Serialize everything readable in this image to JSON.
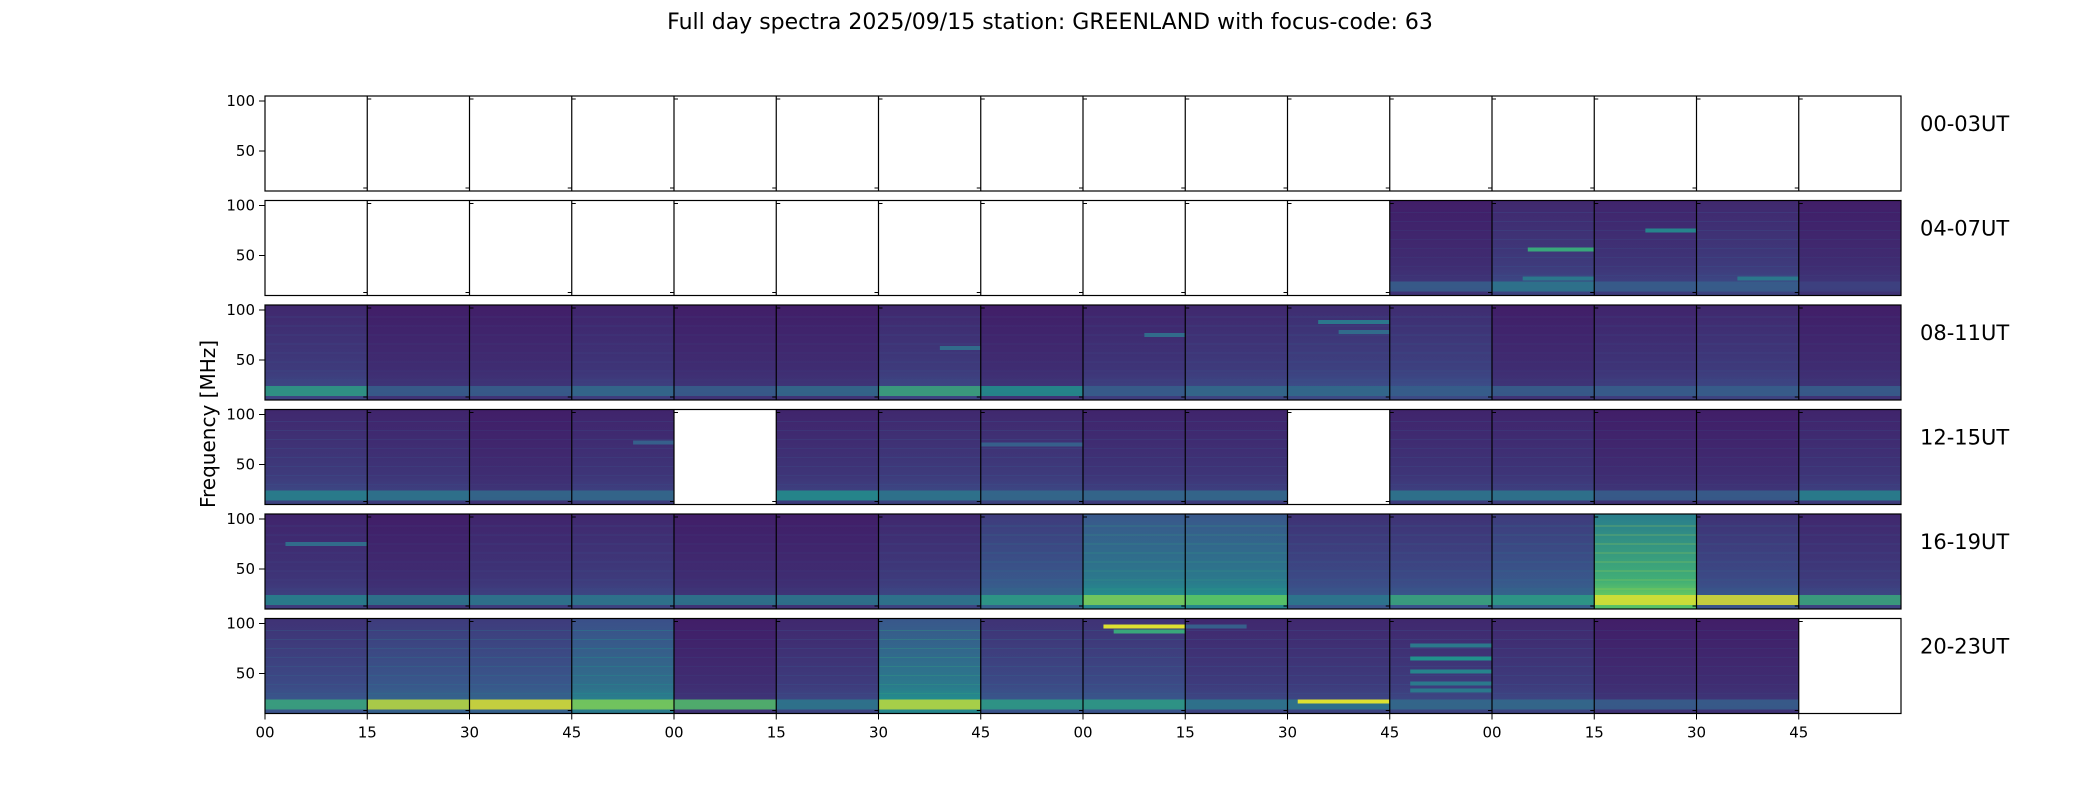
{
  "title": "Full day spectra 2025/09/15 station: GREENLAND with focus-code: 63",
  "chart_data": {
    "type": "heatmap",
    "title": "Full day spectra 2025/09/15 station: GREENLAND with focus-code: 63",
    "station": "GREENLAND",
    "date": "2025/09/15",
    "focus_code": 63,
    "ylabel": "Frequency [MHz]",
    "ylim": [
      10,
      105
    ],
    "yticks": [
      50,
      100
    ],
    "xticks": [
      "00",
      "15",
      "30",
      "45",
      "00",
      "15",
      "30",
      "45",
      "00",
      "15",
      "30",
      "45",
      "00",
      "15",
      "30",
      "45",
      "",
      ""
    ],
    "colormap": "viridis",
    "colors": {
      "low": "#440154",
      "mid": "#33638d",
      "teal": "#21918c",
      "green": "#5ec962",
      "high": "#fde725",
      "base": "#472c7a",
      "empty": "#ffffff",
      "frame": "#000000"
    },
    "rows": [
      {
        "label": "00-03UT",
        "cells": [
          {
            "present": false
          },
          {
            "present": false
          },
          {
            "present": false
          },
          {
            "present": false
          },
          {
            "present": false
          },
          {
            "present": false
          },
          {
            "present": false
          },
          {
            "present": false
          },
          {
            "present": false
          },
          {
            "present": false
          },
          {
            "present": false
          },
          {
            "present": false
          },
          {
            "present": false
          },
          {
            "present": false
          },
          {
            "present": false
          },
          {
            "present": false
          }
        ]
      },
      {
        "label": "04-07UT",
        "cells": [
          {
            "present": false
          },
          {
            "present": false
          },
          {
            "present": false
          },
          {
            "present": false
          },
          {
            "present": false
          },
          {
            "present": false
          },
          {
            "present": false
          },
          {
            "present": false
          },
          {
            "present": false
          },
          {
            "present": false
          },
          {
            "present": false
          },
          {
            "present": true,
            "intensity": 0.15,
            "low_band": 0.3,
            "lines": []
          },
          {
            "present": true,
            "intensity": 0.2,
            "low_band": 0.4,
            "lines": [
              [
                56,
                0.6,
                0.35,
                1.0
              ],
              [
                27,
                0.4,
                0.3,
                1.0
              ]
            ]
          },
          {
            "present": true,
            "intensity": 0.18,
            "low_band": 0.3,
            "lines": [
              [
                75,
                0.45,
                0.5,
                1.0
              ]
            ]
          },
          {
            "present": true,
            "intensity": 0.2,
            "low_band": 0.3,
            "lines": [
              [
                27,
                0.4,
                0.4,
                1.0
              ]
            ]
          },
          {
            "present": true,
            "intensity": 0.15,
            "low_band": 0.2,
            "lines": []
          }
        ]
      },
      {
        "label": "08-11UT",
        "cells": [
          {
            "present": true,
            "intensity": 0.2,
            "low_band": 0.55,
            "lines": []
          },
          {
            "present": true,
            "intensity": 0.15,
            "low_band": 0.3,
            "lines": []
          },
          {
            "present": true,
            "intensity": 0.15,
            "low_band": 0.3,
            "lines": []
          },
          {
            "present": true,
            "intensity": 0.18,
            "low_band": 0.35,
            "lines": []
          },
          {
            "present": true,
            "intensity": 0.15,
            "low_band": 0.3,
            "lines": []
          },
          {
            "present": true,
            "intensity": 0.15,
            "low_band": 0.35,
            "lines": []
          },
          {
            "present": true,
            "intensity": 0.2,
            "low_band": 0.6,
            "lines": [
              [
                62,
                0.35,
                0.6,
                1.0
              ]
            ]
          },
          {
            "present": true,
            "intensity": 0.15,
            "low_band": 0.5,
            "lines": []
          },
          {
            "present": true,
            "intensity": 0.18,
            "low_band": 0.3,
            "lines": [
              [
                75,
                0.35,
                0.6,
                1.0
              ]
            ]
          },
          {
            "present": true,
            "intensity": 0.2,
            "low_band": 0.35,
            "lines": []
          },
          {
            "present": true,
            "intensity": 0.22,
            "low_band": 0.35,
            "lines": [
              [
                88,
                0.4,
                0.3,
                1.0
              ],
              [
                78,
                0.35,
                0.5,
                1.0
              ]
            ]
          },
          {
            "present": true,
            "intensity": 0.22,
            "low_band": 0.3,
            "lines": []
          },
          {
            "present": true,
            "intensity": 0.15,
            "low_band": 0.3,
            "lines": []
          },
          {
            "present": true,
            "intensity": 0.18,
            "low_band": 0.3,
            "lines": []
          },
          {
            "present": true,
            "intensity": 0.2,
            "low_band": 0.3,
            "lines": []
          },
          {
            "present": true,
            "intensity": 0.15,
            "low_band": 0.3,
            "lines": []
          }
        ]
      },
      {
        "label": "12-15UT",
        "cells": [
          {
            "present": true,
            "intensity": 0.2,
            "low_band": 0.45,
            "lines": []
          },
          {
            "present": true,
            "intensity": 0.18,
            "low_band": 0.4,
            "lines": []
          },
          {
            "present": true,
            "intensity": 0.15,
            "low_band": 0.35,
            "lines": []
          },
          {
            "present": true,
            "intensity": 0.18,
            "low_band": 0.35,
            "lines": [
              [
                72,
                0.3,
                0.6,
                1.0
              ]
            ]
          },
          {
            "present": false
          },
          {
            "present": true,
            "intensity": 0.18,
            "low_band": 0.5,
            "lines": []
          },
          {
            "present": true,
            "intensity": 0.2,
            "low_band": 0.4,
            "lines": []
          },
          {
            "present": true,
            "intensity": 0.2,
            "low_band": 0.35,
            "lines": [
              [
                70,
                0.3,
                0.0,
                1.0
              ]
            ]
          },
          {
            "present": true,
            "intensity": 0.18,
            "low_band": 0.35,
            "lines": []
          },
          {
            "present": true,
            "intensity": 0.18,
            "low_band": 0.35,
            "lines": []
          },
          {
            "present": false
          },
          {
            "present": true,
            "intensity": 0.18,
            "low_band": 0.4,
            "lines": []
          },
          {
            "present": true,
            "intensity": 0.18,
            "low_band": 0.4,
            "lines": []
          },
          {
            "present": true,
            "intensity": 0.15,
            "low_band": 0.3,
            "lines": []
          },
          {
            "present": true,
            "intensity": 0.15,
            "low_band": 0.3,
            "lines": []
          },
          {
            "present": true,
            "intensity": 0.18,
            "low_band": 0.45,
            "lines": []
          }
        ]
      },
      {
        "label": "16-19UT",
        "cells": [
          {
            "present": true,
            "intensity": 0.18,
            "low_band": 0.45,
            "lines": [
              [
                75,
                0.35,
                0.2,
                1.0
              ]
            ]
          },
          {
            "present": true,
            "intensity": 0.15,
            "low_band": 0.4,
            "lines": []
          },
          {
            "present": true,
            "intensity": 0.18,
            "low_band": 0.4,
            "lines": []
          },
          {
            "present": true,
            "intensity": 0.2,
            "low_band": 0.4,
            "lines": []
          },
          {
            "present": true,
            "intensity": 0.15,
            "low_band": 0.4,
            "lines": []
          },
          {
            "present": true,
            "intensity": 0.15,
            "low_band": 0.4,
            "lines": []
          },
          {
            "present": true,
            "intensity": 0.2,
            "low_band": 0.4,
            "lines": []
          },
          {
            "present": true,
            "intensity": 0.3,
            "low_band": 0.55,
            "lines": []
          },
          {
            "present": true,
            "intensity": 0.45,
            "low_band": 0.8,
            "lines": []
          },
          {
            "present": true,
            "intensity": 0.45,
            "low_band": 0.75,
            "lines": []
          },
          {
            "present": true,
            "intensity": 0.25,
            "low_band": 0.4,
            "lines": []
          },
          {
            "present": true,
            "intensity": 0.25,
            "low_band": 0.6,
            "lines": []
          },
          {
            "present": true,
            "intensity": 0.3,
            "low_band": 0.55,
            "lines": []
          },
          {
            "present": true,
            "intensity": 0.7,
            "low_band": 0.95,
            "lines": []
          },
          {
            "present": true,
            "intensity": 0.25,
            "low_band": 0.95,
            "lines": []
          },
          {
            "present": true,
            "intensity": 0.2,
            "low_band": 0.6,
            "lines": []
          }
        ]
      },
      {
        "label": "20-23UT",
        "cells": [
          {
            "present": true,
            "intensity": 0.25,
            "low_band": 0.6,
            "lines": []
          },
          {
            "present": true,
            "intensity": 0.3,
            "low_band": 0.9,
            "lines": []
          },
          {
            "present": true,
            "intensity": 0.3,
            "low_band": 0.95,
            "lines": []
          },
          {
            "present": true,
            "intensity": 0.4,
            "low_band": 0.8,
            "lines": []
          },
          {
            "present": true,
            "intensity": 0.15,
            "low_band": 0.7,
            "lines": []
          },
          {
            "present": true,
            "intensity": 0.2,
            "low_band": 0.4,
            "lines": []
          },
          {
            "present": true,
            "intensity": 0.45,
            "low_band": 0.9,
            "lines": []
          },
          {
            "present": true,
            "intensity": 0.25,
            "low_band": 0.55,
            "lines": []
          },
          {
            "present": true,
            "intensity": 0.25,
            "low_band": 0.55,
            "lines": [
              [
                97,
                0.95,
                0.2,
                1.0
              ],
              [
                92,
                0.6,
                0.3,
                1.0
              ]
            ]
          },
          {
            "present": true,
            "intensity": 0.2,
            "low_band": 0.4,
            "lines": [
              [
                97,
                0.3,
                0.0,
                0.6
              ]
            ]
          },
          {
            "present": true,
            "intensity": 0.2,
            "low_band": 0.4,
            "lines": [
              [
                22,
                0.95,
                0.1,
                1.0
              ]
            ]
          },
          {
            "present": true,
            "intensity": 0.2,
            "low_band": 0.35,
            "lines": [
              [
                78,
                0.4,
                0.2,
                1.0
              ],
              [
                65,
                0.5,
                0.2,
                1.0
              ],
              [
                52,
                0.45,
                0.2,
                1.0
              ],
              [
                40,
                0.4,
                0.2,
                1.0
              ],
              [
                33,
                0.4,
                0.2,
                1.0
              ]
            ]
          },
          {
            "present": true,
            "intensity": 0.2,
            "low_band": 0.35,
            "lines": []
          },
          {
            "present": true,
            "intensity": 0.15,
            "low_band": 0.3,
            "lines": []
          },
          {
            "present": true,
            "intensity": 0.15,
            "low_band": 0.3,
            "lines": []
          },
          {
            "present": false
          }
        ]
      }
    ]
  }
}
